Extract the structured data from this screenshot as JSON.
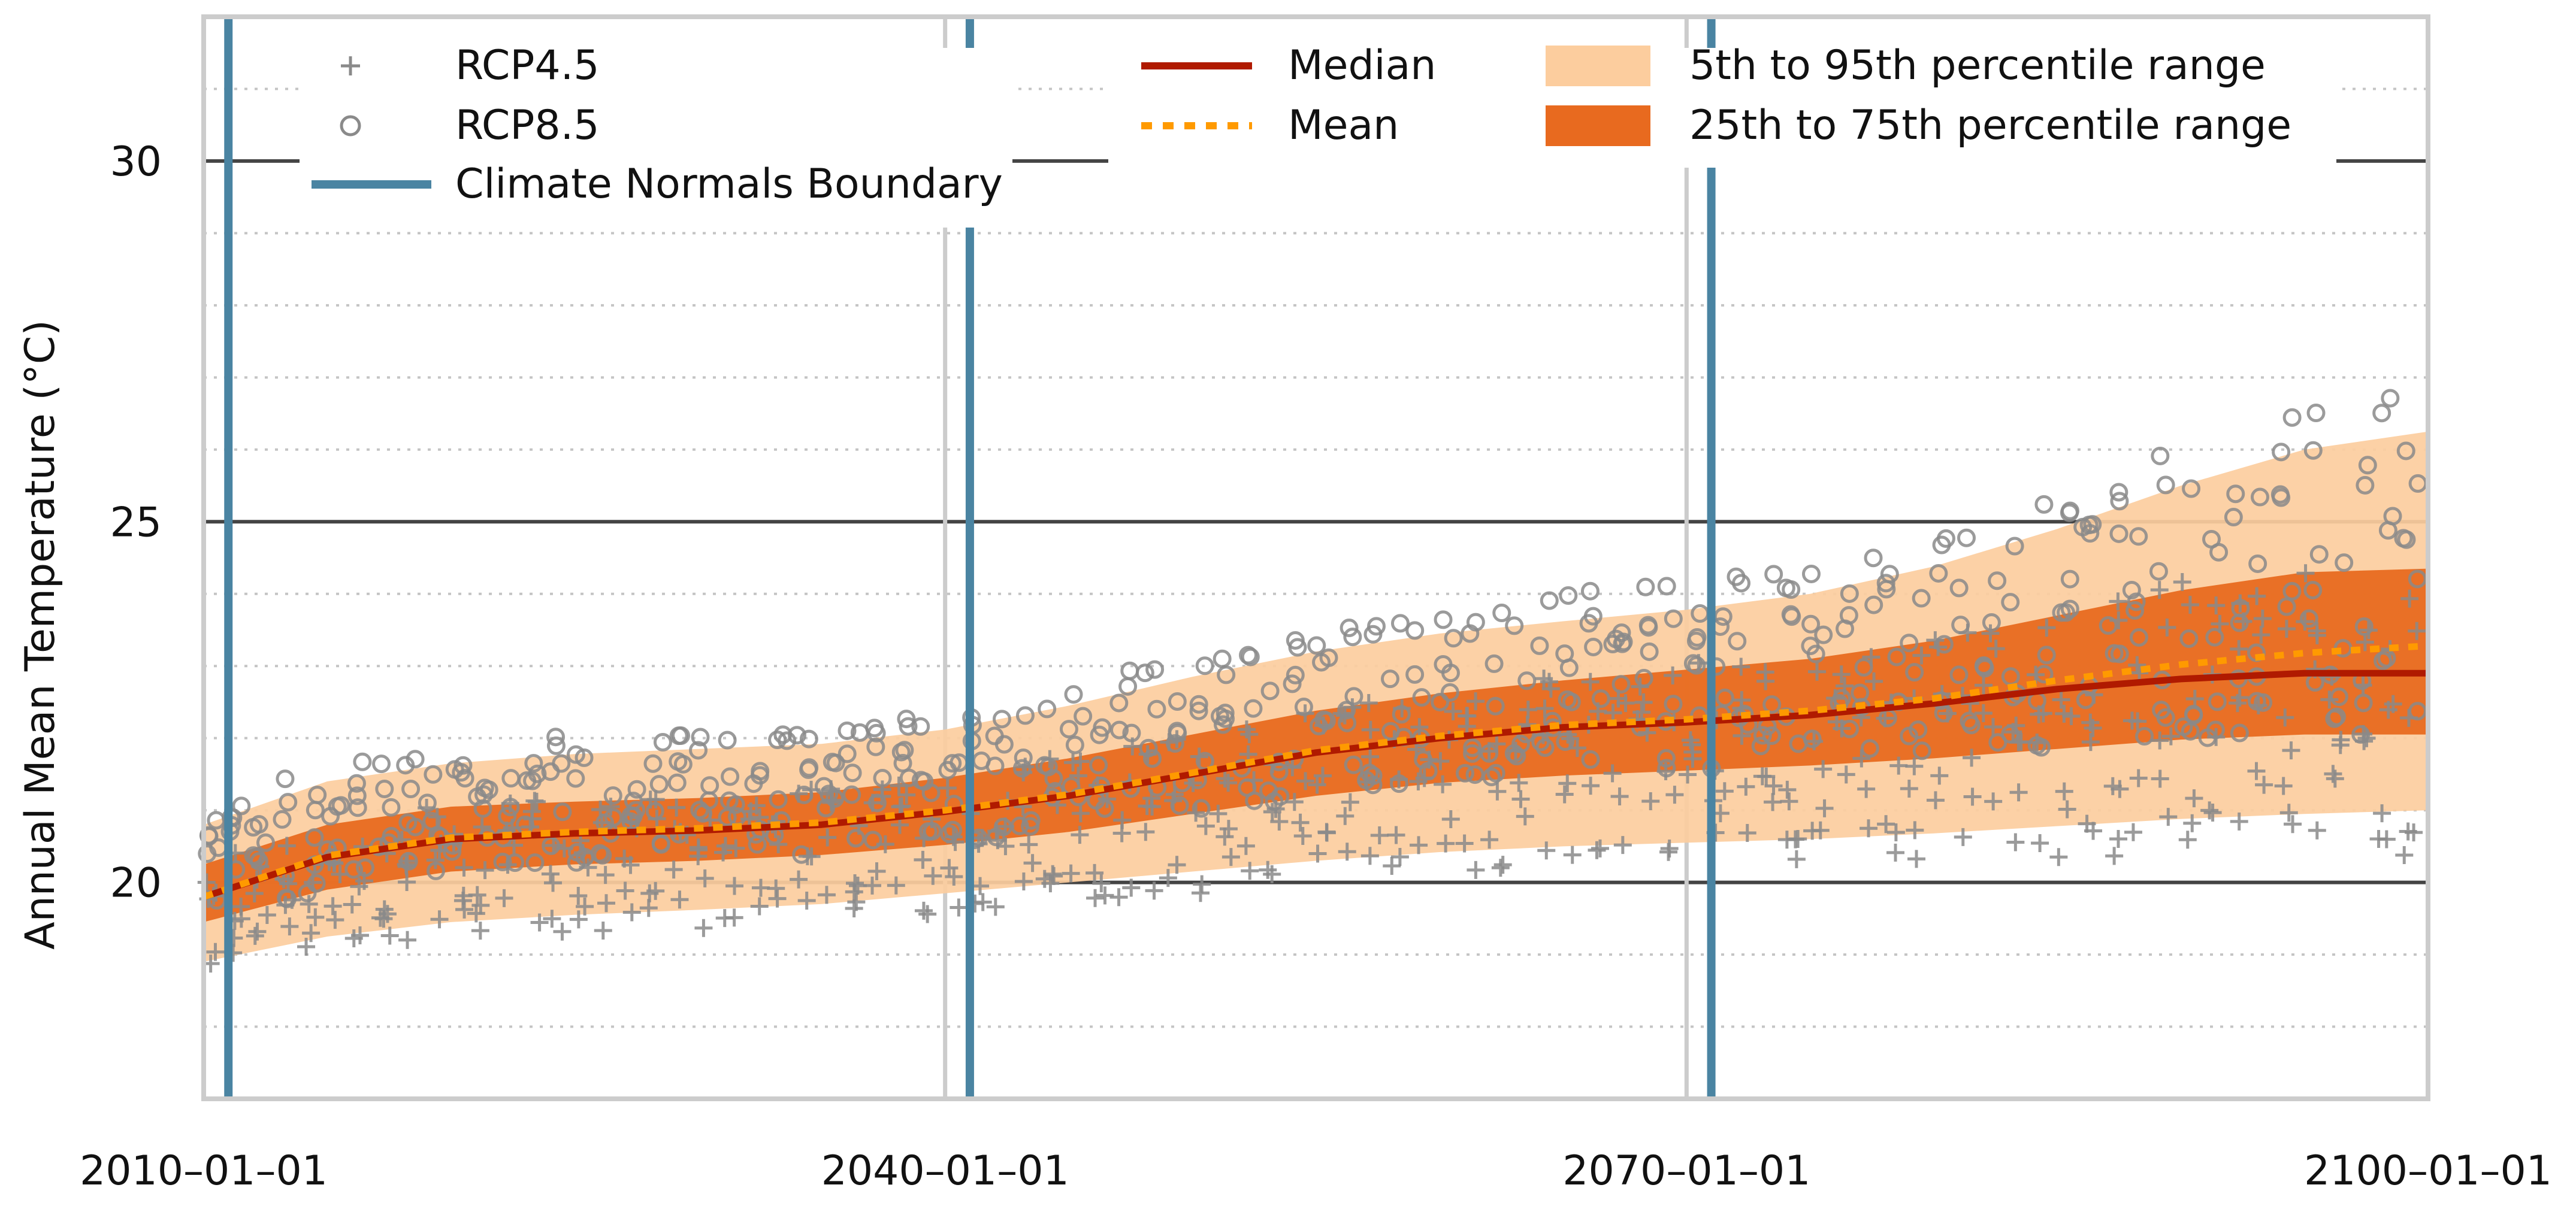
{
  "chart_data": {
    "type": "line",
    "title": "",
    "xlabel": "",
    "ylabel": "Annual Mean Temperature (°C)",
    "xlim": [
      2010,
      2100
    ],
    "ylim": [
      17,
      32
    ],
    "x_ticks": [
      {
        "value": 2010,
        "label": "2010–01–01"
      },
      {
        "value": 2040,
        "label": "2040–01–01"
      },
      {
        "value": 2070,
        "label": "2070–01–01"
      },
      {
        "value": 2100,
        "label": "2100–01–01"
      }
    ],
    "y_ticks": [
      {
        "value": 20,
        "label": "20"
      },
      {
        "value": 25,
        "label": "25"
      },
      {
        "value": 30,
        "label": "30"
      }
    ],
    "y_minor_gridlines": [
      18,
      19,
      21,
      22,
      23,
      24,
      26,
      27,
      28,
      29,
      31
    ],
    "climate_normals_boundaries": [
      2011,
      2041,
      2071
    ],
    "colors": {
      "boundary": "#4a84a2",
      "median": "#b01a00",
      "mean": "#ff9a00",
      "band_5_95": "#fccd9e",
      "band_25_75": "#e86a1f",
      "scatter": "#8a8a8a",
      "grid_major": "#444444",
      "grid_minor": "#c4c4c4",
      "frame": "#cccccc"
    },
    "series": [
      {
        "name": "Median",
        "x": [
          2010,
          2015,
          2020,
          2025,
          2030,
          2035,
          2040,
          2045,
          2050,
          2055,
          2060,
          2065,
          2070,
          2075,
          2080,
          2085,
          2090,
          2095,
          2100
        ],
        "values": [
          19.8,
          20.35,
          20.6,
          20.68,
          20.72,
          20.8,
          20.98,
          21.2,
          21.5,
          21.8,
          22.0,
          22.15,
          22.22,
          22.32,
          22.48,
          22.68,
          22.82,
          22.9,
          22.9
        ]
      },
      {
        "name": "Mean",
        "x": [
          2010,
          2015,
          2020,
          2025,
          2030,
          2035,
          2040,
          2045,
          2050,
          2055,
          2060,
          2065,
          2070,
          2075,
          2080,
          2085,
          2090,
          2095,
          2100
        ],
        "values": [
          19.8,
          20.37,
          20.62,
          20.7,
          20.75,
          20.83,
          21.0,
          21.22,
          21.52,
          21.83,
          22.03,
          22.18,
          22.26,
          22.38,
          22.55,
          22.8,
          23.02,
          23.18,
          23.28
        ]
      }
    ],
    "bands": [
      {
        "name": "5th to 95th percentile range",
        "x": [
          2010,
          2015,
          2020,
          2025,
          2030,
          2035,
          2040,
          2045,
          2050,
          2055,
          2060,
          2065,
          2070,
          2075,
          2080,
          2085,
          2090,
          2095,
          2100
        ],
        "lower": [
          18.9,
          19.25,
          19.45,
          19.55,
          19.62,
          19.7,
          19.85,
          20.0,
          20.15,
          20.3,
          20.42,
          20.5,
          20.55,
          20.6,
          20.68,
          20.78,
          20.88,
          20.95,
          21.0
        ],
        "upper": [
          20.8,
          21.4,
          21.65,
          21.78,
          21.85,
          21.92,
          22.12,
          22.45,
          22.85,
          23.2,
          23.45,
          23.62,
          23.78,
          24.0,
          24.38,
          24.9,
          25.5,
          26.0,
          26.25
        ]
      },
      {
        "name": "25th to 75th percentile range",
        "x": [
          2010,
          2015,
          2020,
          2025,
          2030,
          2035,
          2040,
          2045,
          2050,
          2055,
          2060,
          2065,
          2070,
          2075,
          2080,
          2085,
          2090,
          2095,
          2100
        ],
        "lower": [
          19.45,
          19.9,
          20.15,
          20.25,
          20.3,
          20.38,
          20.52,
          20.7,
          20.95,
          21.2,
          21.38,
          21.48,
          21.55,
          21.62,
          21.72,
          21.85,
          21.98,
          22.05,
          22.05
        ],
        "upper": [
          20.25,
          20.8,
          21.05,
          21.12,
          21.17,
          21.25,
          21.45,
          21.72,
          22.05,
          22.38,
          22.62,
          22.8,
          22.95,
          23.1,
          23.35,
          23.7,
          24.05,
          24.3,
          24.35
        ]
      }
    ],
    "scatter_series": [
      {
        "name": "RCP4.5",
        "marker": "+"
      },
      {
        "name": "RCP8.5",
        "marker": "o"
      }
    ],
    "legend": {
      "position": "top",
      "entries": [
        {
          "label": "RCP4.5",
          "kind": "plus"
        },
        {
          "label": "RCP8.5",
          "kind": "circle"
        },
        {
          "label": "Climate Normals Boundary",
          "kind": "boundary"
        },
        {
          "label": "Median",
          "kind": "median"
        },
        {
          "label": "Mean",
          "kind": "mean"
        },
        {
          "label": "5th to 95th percentile range",
          "kind": "band_5_95"
        },
        {
          "label": "25th to 75th percentile range",
          "kind": "band_25_75"
        }
      ]
    },
    "grid": true
  }
}
